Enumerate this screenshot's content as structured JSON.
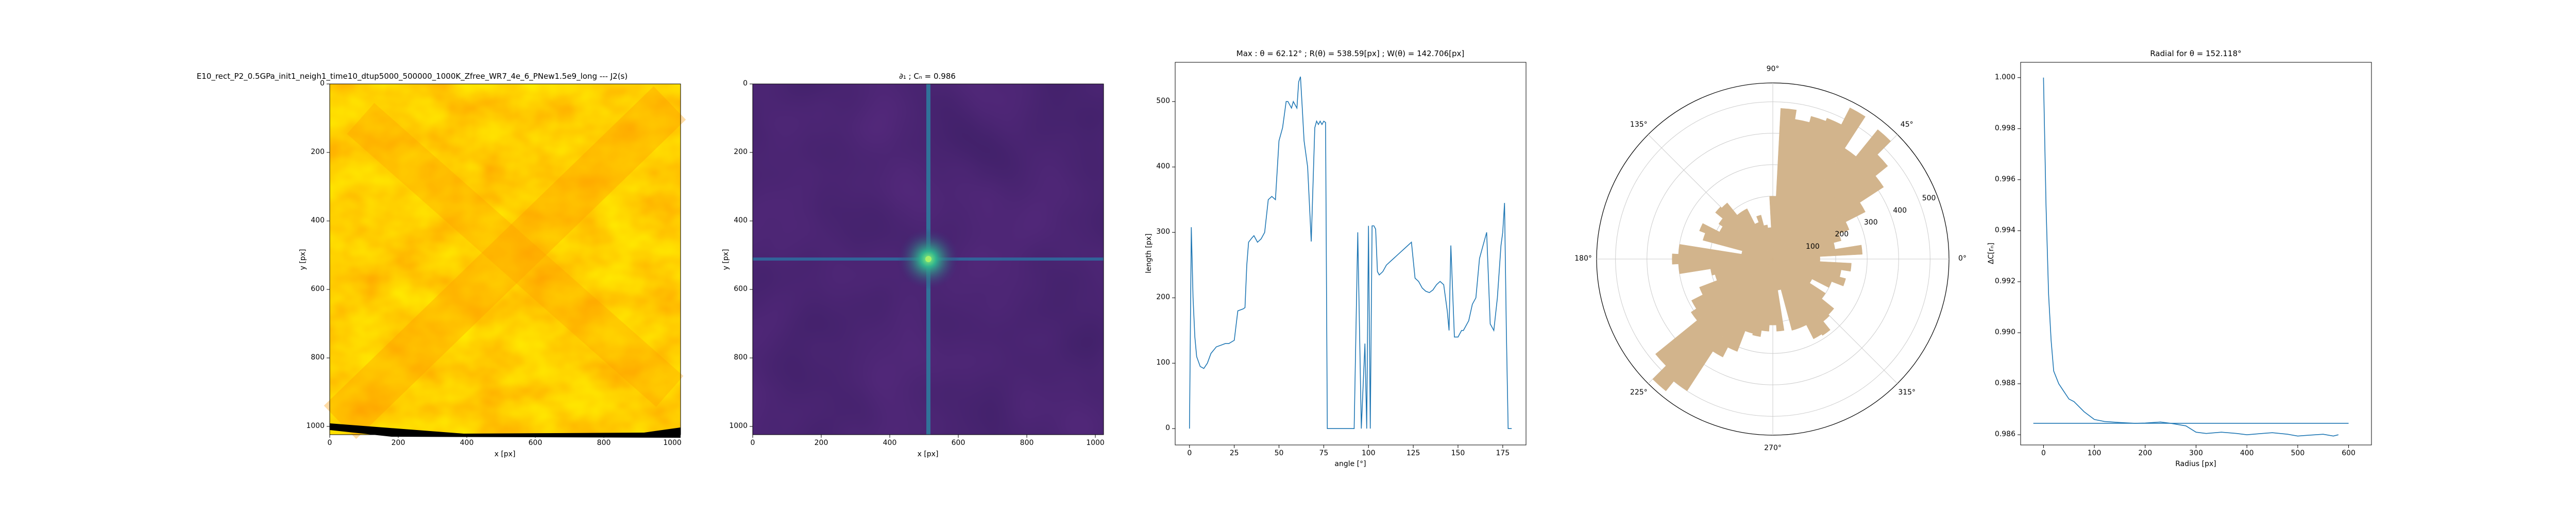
{
  "panels": {
    "image": {
      "title": "E10_rect_P2_0.5GPa_init1_neigh1_time10_dtup5000_500000_1000K_Zfree_WR7_4e_6_PNew1.5e9_long --- J2(s)",
      "xlabel": "x [px]",
      "ylabel": "y [px]",
      "xticks": [
        "0",
        "200",
        "400",
        "600",
        "800",
        "1000"
      ],
      "yticks": [
        "0",
        "200",
        "400",
        "600",
        "800",
        "1000"
      ]
    },
    "autocorr": {
      "title": "∂₁ ; Cₙ = 0.986",
      "xlabel": "x [px]",
      "ylabel": "y [px]",
      "xticks": [
        "0",
        "200",
        "400",
        "600",
        "800",
        "1000"
      ],
      "yticks": [
        "0",
        "200",
        "400",
        "600",
        "800",
        "1000"
      ]
    },
    "length": {
      "title": "Max : θ = 62.12° ; R(θ) = 538.59[px] ; W(θ) = 142.706[px]",
      "xlabel": "angle [°]",
      "ylabel": "length [px]",
      "xticks": [
        "0",
        "25",
        "50",
        "75",
        "100",
        "125",
        "150",
        "175"
      ],
      "yticks": [
        "0",
        "100",
        "200",
        "300",
        "400",
        "500"
      ]
    },
    "polar": {
      "angle_labels": [
        "0°",
        "45°",
        "90°",
        "135°",
        "180°",
        "225°",
        "270°",
        "315°"
      ],
      "radial_labels": [
        "100",
        "200",
        "300",
        "400",
        "500"
      ]
    },
    "radial": {
      "title": "Radial for θ = 152.118°",
      "xlabel": "Radius [px]",
      "ylabel": "ΔC[rₙ]",
      "xticks": [
        "0",
        "100",
        "200",
        "300",
        "400",
        "500",
        "600"
      ],
      "yticks": [
        "0.986",
        "0.988",
        "0.990",
        "0.992",
        "0.994",
        "0.996",
        "0.998",
        "1.000"
      ]
    }
  },
  "chart_data": [
    {
      "type": "heatmap",
      "title": "E10_rect_P2_0.5GPa_init1_neigh1_time10_dtup5000_500000_1000K_Zfree_WR7_4e_6_PNew1.5e9_long --- J2(s)",
      "xlabel": "x [px]",
      "ylabel": "y [px]",
      "xlim": [
        0,
        1024
      ],
      "ylim": [
        1024,
        0
      ],
      "colormap": "autumn (yellow-orange)"
    },
    {
      "type": "heatmap",
      "title": "∂₁ ; Cₙ = 0.986",
      "xlabel": "x [px]",
      "ylabel": "y [px]",
      "xlim": [
        0,
        1024
      ],
      "ylim": [
        1024,
        0
      ],
      "colormap": "viridis",
      "peak": [
        512,
        512
      ]
    },
    {
      "type": "line",
      "title": "Max : θ = 62.12° ; R(θ) = 538.59[px] ; W(θ) = 142.706[px]",
      "xlabel": "angle [°]",
      "ylabel": "length [px]",
      "xlim": [
        -8,
        188
      ],
      "ylim": [
        -25,
        560
      ],
      "x": [
        0,
        1,
        2,
        3,
        4,
        6,
        8,
        10,
        12,
        15,
        18,
        20,
        22,
        25,
        27,
        30,
        31,
        32,
        33,
        35,
        36,
        38,
        40,
        42,
        44,
        46,
        48,
        50,
        52,
        54,
        55,
        56,
        57,
        58,
        60,
        61,
        62,
        63,
        64,
        66,
        68,
        70,
        71,
        72,
        73,
        74,
        75,
        76,
        77,
        78,
        80,
        81,
        82,
        84,
        86,
        88,
        90,
        92,
        94,
        96,
        98,
        99,
        100,
        101,
        102,
        103,
        104,
        105,
        106,
        108,
        110,
        112,
        114,
        116,
        118,
        120,
        122,
        124,
        126,
        128,
        130,
        132,
        134,
        136,
        138,
        140,
        142,
        144,
        145,
        146,
        148,
        150,
        151,
        152,
        153,
        154,
        156,
        158,
        160,
        162,
        164,
        166,
        168,
        170,
        172,
        174,
        175,
        176,
        177,
        178,
        179,
        180
      ],
      "y": [
        0,
        308,
        200,
        140,
        110,
        95,
        92,
        100,
        115,
        125,
        128,
        130,
        130,
        135,
        180,
        183,
        185,
        250,
        285,
        292,
        295,
        285,
        290,
        300,
        350,
        355,
        350,
        440,
        460,
        500,
        500,
        495,
        490,
        500,
        490,
        530,
        538,
        490,
        440,
        400,
        286,
        460,
        470,
        465,
        470,
        465,
        470,
        468,
        0,
        0,
        0,
        0,
        0,
        0,
        0,
        0,
        0,
        0,
        300,
        0,
        130,
        0,
        310,
        0,
        310,
        310,
        305,
        240,
        235,
        240,
        250,
        255,
        260,
        265,
        270,
        275,
        280,
        285,
        230,
        225,
        215,
        210,
        208,
        212,
        220,
        225,
        220,
        180,
        150,
        280,
        140,
        140,
        145,
        150,
        150,
        155,
        165,
        190,
        200,
        260,
        280,
        300,
        160,
        150,
        200,
        280,
        300,
        345,
        150,
        0,
        0,
        0
      ],
      "peak": {
        "angle": 62.12,
        "R": 538.59,
        "W": 142.706
      }
    },
    {
      "type": "bar",
      "subtype": "polar",
      "angle_unit": "deg",
      "rlim": [
        0,
        560
      ],
      "angles": [
        0,
        6,
        12,
        18,
        24,
        30,
        36,
        42,
        48,
        54,
        60,
        66,
        72,
        78,
        84,
        90,
        96,
        102,
        108,
        114,
        120,
        126,
        132,
        138,
        144,
        150,
        156,
        162,
        168,
        174,
        180,
        186,
        192,
        198,
        204,
        210,
        216,
        222,
        228,
        234,
        240,
        246,
        252,
        258,
        264,
        270,
        276,
        282,
        288,
        294,
        300,
        306,
        312,
        318,
        324,
        330,
        336,
        342,
        348,
        354
      ],
      "values": [
        150,
        285,
        200,
        225,
        260,
        330,
        420,
        470,
        530,
        420,
        540,
        480,
        470,
        450,
        480,
        200,
        100,
        110,
        145,
        125,
        180,
        180,
        230,
        235,
        205,
        190,
        250,
        230,
        100,
        300,
        320,
        300,
        200,
        190,
        250,
        290,
        310,
        480,
        540,
        500,
        350,
        315,
        245,
        250,
        230,
        210,
        230,
        100,
        235,
        235,
        285,
        290,
        255,
        250,
        200,
        140,
        200,
        240,
        220,
        250
      ]
    },
    {
      "type": "line",
      "title": "Radial for θ = 152.118°",
      "xlabel": "Radius [px]",
      "ylabel": "ΔC[rₙ]",
      "xlim": [
        -45,
        645
      ],
      "ylim": [
        0.9856,
        1.0006
      ],
      "x": [
        0,
        5,
        10,
        15,
        20,
        30,
        40,
        50,
        60,
        80,
        100,
        120,
        150,
        180,
        200,
        230,
        250,
        280,
        300,
        320,
        350,
        380,
        400,
        430,
        450,
        480,
        500,
        520,
        550,
        570,
        580
      ],
      "y": [
        1.0,
        0.995,
        0.9915,
        0.9897,
        0.9885,
        0.988,
        0.9877,
        0.9874,
        0.9873,
        0.9869,
        0.9866,
        0.98652,
        0.98648,
        0.98645,
        0.98646,
        0.9865,
        0.98645,
        0.98635,
        0.9861,
        0.98605,
        0.9861,
        0.98605,
        0.986,
        0.98605,
        0.98608,
        0.98602,
        0.98595,
        0.98598,
        0.98602,
        0.98595,
        0.986
      ],
      "baseline": {
        "x": [
          -20,
          600
        ],
        "y": 0.98645
      }
    }
  ]
}
